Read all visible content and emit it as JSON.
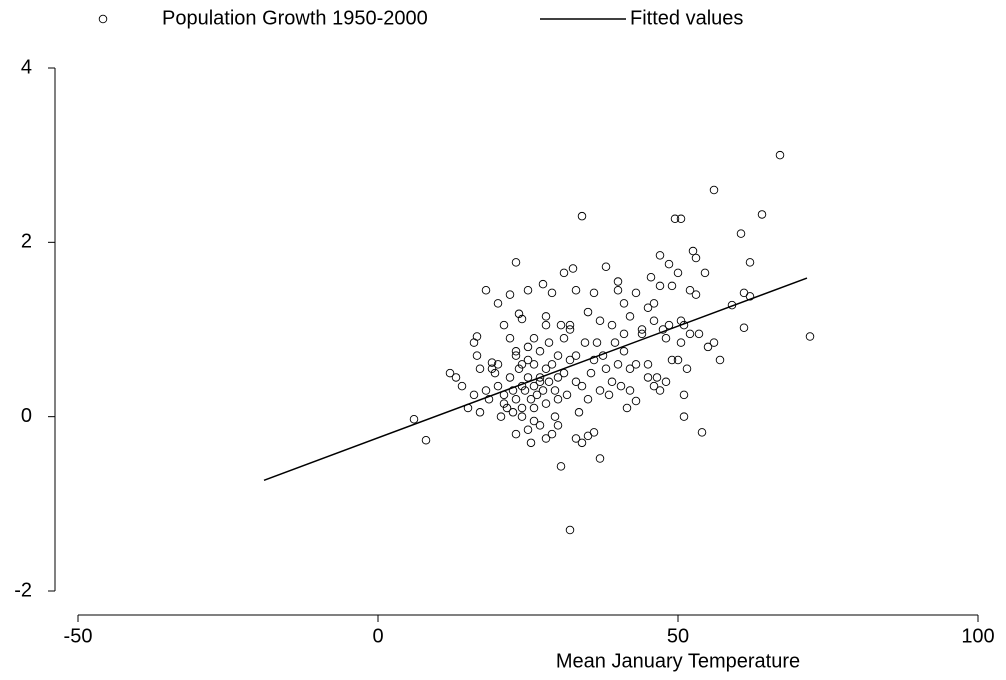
{
  "chart_data": {
    "type": "scatter",
    "x_label": "Mean January Temperature",
    "xlim": [
      -50,
      100
    ],
    "ylim": [
      -2,
      4
    ],
    "xticks": [
      -50,
      0,
      50,
      100
    ],
    "yticks": [
      -2,
      0,
      2,
      4
    ],
    "legend": "top",
    "series": [
      {
        "name": "Population Growth 1950-2000",
        "kind": "points",
        "color": "#000000",
        "x": [
          6,
          8,
          12,
          13,
          14,
          15,
          16,
          16,
          16.5,
          16.5,
          17,
          17,
          18,
          18,
          18.5,
          19,
          19,
          19.5,
          20,
          20,
          20,
          20.5,
          21,
          21,
          21,
          21.5,
          22,
          22,
          22,
          22.5,
          22.5,
          23,
          23,
          23,
          23,
          23,
          23.5,
          23.5,
          24,
          24,
          24,
          24,
          24,
          24.5,
          25,
          25,
          25,
          25,
          25,
          25.5,
          25.5,
          26,
          26,
          26,
          26,
          26,
          26.5,
          27,
          27,
          27,
          27,
          27.5,
          27.5,
          28,
          28,
          28,
          28,
          28,
          28.5,
          28.5,
          29,
          29,
          29,
          29.5,
          29.5,
          30,
          30,
          30,
          30,
          30.5,
          30.5,
          31,
          31,
          31,
          31.5,
          32,
          32,
          32,
          32,
          32.5,
          33,
          33,
          33,
          33,
          33.5,
          34,
          34,
          34,
          34.5,
          35,
          35,
          35,
          35.5,
          36,
          36,
          36,
          36.5,
          37,
          37,
          37,
          37.5,
          38,
          38,
          38.5,
          39,
          39,
          39.5,
          40,
          40,
          40,
          40.5,
          41,
          41,
          41,
          41.5,
          42,
          42,
          42,
          43,
          43,
          43,
          44,
          44,
          45,
          45,
          45,
          45.5,
          46,
          46,
          46,
          46.5,
          47,
          47,
          47,
          47.5,
          48,
          48,
          48.5,
          48.5,
          49,
          49,
          49.5,
          50,
          50,
          50.5,
          50.5,
          50.5,
          51,
          51,
          51,
          51.5,
          52,
          52,
          52.5,
          53,
          53,
          53.5,
          54,
          54.5,
          55,
          56,
          56,
          57,
          59,
          60.5,
          61,
          61,
          62,
          62,
          64,
          67,
          72
        ],
        "values": [
          -0.03,
          -0.27,
          0.5,
          0.45,
          0.35,
          0.1,
          0.25,
          0.85,
          0.92,
          0.7,
          0.05,
          0.55,
          1.45,
          0.3,
          0.2,
          0.62,
          0.55,
          0.5,
          0.6,
          0.35,
          1.3,
          0.0,
          0.25,
          0.15,
          1.05,
          0.1,
          0.9,
          0.45,
          1.4,
          0.05,
          0.3,
          0.7,
          0.75,
          -0.2,
          1.77,
          0.2,
          1.18,
          0.55,
          0.1,
          0.35,
          0.6,
          1.12,
          0.0,
          0.3,
          0.45,
          0.8,
          -0.15,
          1.45,
          0.65,
          0.2,
          -0.3,
          0.35,
          0.1,
          -0.05,
          0.6,
          0.9,
          0.25,
          0.4,
          -0.1,
          0.45,
          0.75,
          1.52,
          0.3,
          0.55,
          1.05,
          1.15,
          -0.25,
          0.15,
          0.85,
          0.4,
          1.42,
          0.6,
          -0.2,
          0.0,
          0.3,
          0.2,
          0.7,
          -0.1,
          0.45,
          1.05,
          -0.57,
          1.65,
          0.5,
          0.9,
          0.25,
          1.0,
          1.05,
          0.65,
          -1.3,
          1.7,
          0.7,
          -0.25,
          1.45,
          0.4,
          0.05,
          2.3,
          0.35,
          -0.3,
          0.85,
          1.2,
          0.2,
          -0.22,
          0.5,
          1.42,
          0.65,
          -0.18,
          0.85,
          1.1,
          0.3,
          -0.48,
          0.7,
          1.72,
          0.55,
          0.25,
          1.05,
          0.4,
          0.85,
          1.45,
          0.6,
          1.55,
          0.35,
          1.3,
          0.95,
          0.75,
          0.1,
          0.55,
          0.3,
          1.15,
          0.6,
          1.42,
          0.18,
          0.95,
          1.0,
          1.25,
          0.6,
          0.45,
          1.6,
          1.3,
          1.1,
          0.35,
          0.45,
          1.5,
          0.3,
          1.85,
          1.0,
          0.9,
          0.4,
          1.05,
          1.75,
          0.65,
          1.5,
          2.27,
          1.65,
          0.65,
          2.27,
          1.1,
          0.85,
          0.25,
          0.0,
          1.05,
          0.55,
          1.45,
          0.95,
          1.9,
          1.4,
          1.82,
          0.95,
          -0.18,
          1.65,
          0.8,
          2.6,
          0.85,
          0.65,
          1.28,
          2.1,
          1.02,
          1.42,
          1.38,
          1.77,
          2.32,
          3.0,
          0.92
        ]
      },
      {
        "name": "Fitted values",
        "kind": "line",
        "color": "#000000",
        "x": [
          -19,
          71.5
        ],
        "values": [
          -0.73,
          1.59
        ]
      }
    ]
  }
}
